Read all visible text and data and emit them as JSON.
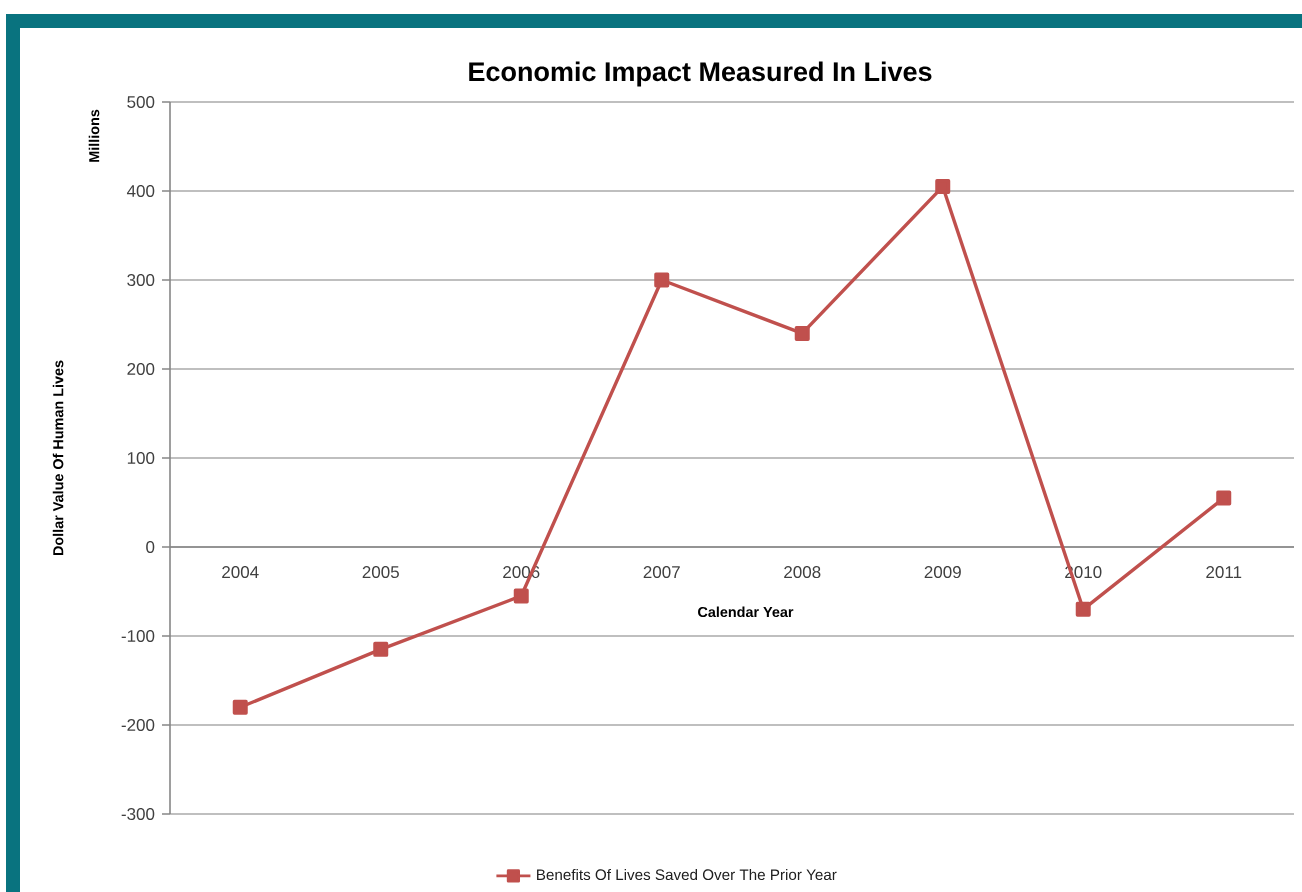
{
  "chart_data": {
    "type": "line",
    "title": "Economic Impact Measured In Lives",
    "xlabel": "Calendar Year",
    "ylabel": "Dollar Value Of Human Lives",
    "annotations": [
      "Millions"
    ],
    "categories": [
      "2004",
      "2005",
      "2006",
      "2007",
      "2008",
      "2009",
      "2010",
      "2011"
    ],
    "series": [
      {
        "name": "Benefits Of Lives Saved Over The Prior Year",
        "color": "#c0504d",
        "values": [
          -180,
          -115,
          -55,
          300,
          240,
          405,
          -70,
          55
        ]
      }
    ],
    "ylim": [
      -300,
      500
    ],
    "yticks": [
      -300,
      -200,
      -100,
      0,
      100,
      200,
      300,
      400,
      500
    ],
    "grid": "y",
    "legend": "bottom",
    "marker": "square",
    "line_style": "solid"
  }
}
